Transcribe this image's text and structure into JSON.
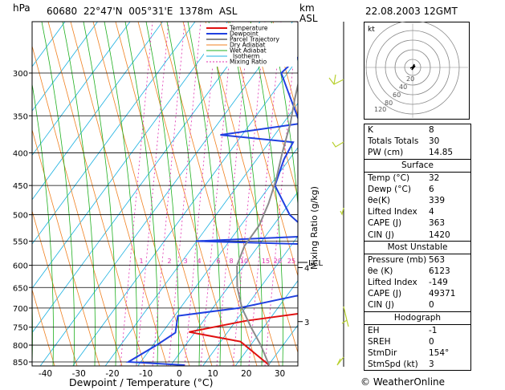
{
  "header": {
    "station_id": "60680",
    "lat": "22°47'N",
    "lon": "005°31'E",
    "elev": "1378m",
    "asl": "ASL",
    "hpa": "hPa",
    "km": "km",
    "km_asl": "ASL",
    "datetime": "22.08.2003 12GMT"
  },
  "legend": [
    "Temperature",
    "Dewpoint",
    "Parcel Trajectory",
    "Dry Adiabat",
    "Wet Adiabat",
    "Isotherm",
    "Mixing Ratio"
  ],
  "chart_data": {
    "type": "skew-t",
    "xlabel": "Dewpoint / Temperature (°C)",
    "ylabel": "hPa",
    "mixing_ratio_label": "Mixing Ratio (g/kg)",
    "x_ticks": [
      -40,
      -30,
      -20,
      -10,
      0,
      10,
      20,
      30
    ],
    "pressure_ticks": [
      300,
      350,
      400,
      450,
      500,
      550,
      600,
      650,
      700,
      750,
      800,
      850
    ],
    "km_ticks": [
      {
        "p": 735,
        "km": "3"
      },
      {
        "p": 605,
        "km": "4"
      }
    ],
    "mixing_ratio_labels": [
      "1",
      "2",
      "3",
      "4",
      "6",
      "8",
      "10",
      "15",
      "20",
      "25"
    ],
    "lcl_label": "LCL",
    "series": [
      {
        "name": "Temperature",
        "color": "#e01010",
        "points": [
          [
            32,
            860
          ],
          [
            18,
            790
          ],
          [
            0,
            763
          ],
          [
            15,
            733
          ],
          [
            33,
            710
          ],
          [
            45,
            675
          ],
          [
            50,
            650
          ],
          [
            15,
            560
          ],
          [
            22,
            545
          ],
          [
            15,
            500
          ],
          [
            9,
            440
          ],
          [
            4,
            410
          ],
          [
            0,
            385
          ],
          [
            -3,
            385
          ],
          [
            -4,
            360
          ],
          [
            -8,
            350
          ],
          [
            -10,
            330
          ],
          [
            -12,
            305
          ],
          [
            -10,
            270
          ]
        ]
      },
      {
        "name": "Dewpoint",
        "color": "#2040e0",
        "points": [
          [
            6,
            860
          ],
          [
            -12,
            850
          ],
          [
            -7,
            800
          ],
          [
            -4,
            765
          ],
          [
            -7,
            720
          ],
          [
            10,
            700
          ],
          [
            25,
            670
          ],
          [
            40,
            650
          ],
          [
            40,
            560
          ],
          [
            -18,
            550
          ],
          [
            17,
            540
          ],
          [
            5,
            500
          ],
          [
            -6,
            450
          ],
          [
            -9,
            410
          ],
          [
            -10,
            385
          ],
          [
            -34,
            375
          ],
          [
            -12,
            360
          ],
          [
            -23,
            320
          ],
          [
            -29,
            300
          ],
          [
            -27,
            280
          ],
          [
            -28,
            270
          ]
        ]
      },
      {
        "name": "Parcel Trajectory",
        "color": "#8a8a8a",
        "points": [
          [
            32,
            860
          ],
          [
            25,
            800
          ],
          [
            18,
            750
          ],
          [
            11,
            700
          ],
          [
            5,
            650
          ],
          [
            0,
            600
          ],
          [
            -2,
            560
          ],
          [
            -2,
            520
          ],
          [
            -4,
            480
          ],
          [
            -7,
            440
          ],
          [
            -11,
            400
          ],
          [
            -15,
            360
          ],
          [
            -19,
            330
          ],
          [
            -23,
            300
          ],
          [
            -27,
            285
          ]
        ]
      }
    ]
  },
  "wind_profile": {
    "label": "km\nASL"
  },
  "hodograph": {
    "label": "kt",
    "ring_labels": [
      "20",
      "40",
      "60",
      "80",
      "120"
    ]
  },
  "indices": {
    "general": [
      {
        "label": "K",
        "value": "8"
      },
      {
        "label": "Totals Totals",
        "value": "30"
      },
      {
        "label": "PW (cm)",
        "value": "14.85"
      }
    ],
    "surface_title": "Surface",
    "surface": [
      {
        "label": "Temp (°C)",
        "value": "32"
      },
      {
        "label": "Dewp (°C)",
        "value": "6"
      },
      {
        "label": "θe(K)",
        "value": "339"
      },
      {
        "label": "Lifted Index",
        "value": "4"
      },
      {
        "label": "CAPE (J)",
        "value": "363"
      },
      {
        "label": "CIN (J)",
        "value": "1420"
      }
    ],
    "unstable_title": "Most Unstable",
    "unstable": [
      {
        "label": "Pressure (mb)",
        "value": "563"
      },
      {
        "label": "θe (K)",
        "value": "6123"
      },
      {
        "label": "Lifted Index",
        "value": "-149"
      },
      {
        "label": "CAPE (J)",
        "value": "49371"
      },
      {
        "label": "CIN (J)",
        "value": "0"
      }
    ],
    "hodo_title": "Hodograph",
    "hodo": [
      {
        "label": "EH",
        "value": "-1"
      },
      {
        "label": "SREH",
        "value": "0"
      },
      {
        "label": "StmDir",
        "value": "154°"
      },
      {
        "label": "StmSpd (kt)",
        "value": "3"
      }
    ]
  },
  "credit": "© WeatherOnline"
}
